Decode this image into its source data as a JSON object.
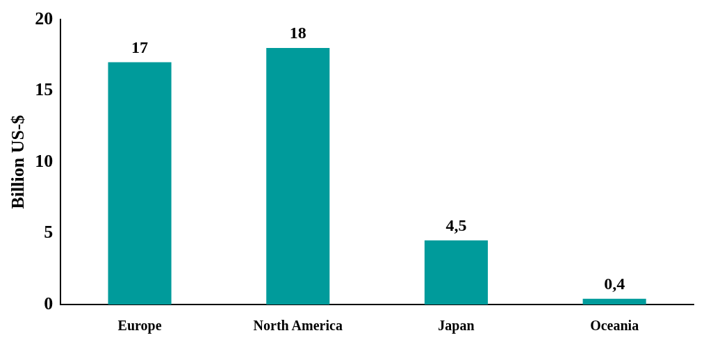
{
  "chart_data": {
    "type": "bar",
    "ylabel": "Billion US-$",
    "categories": [
      "Europe",
      "North America",
      "Japan",
      "Oceania"
    ],
    "values": [
      17,
      18,
      4.5,
      0.4
    ],
    "value_labels": [
      "17",
      "18",
      "4,5",
      "0,4"
    ],
    "color": "#009b9b",
    "ylim": [
      0,
      20
    ],
    "yticks": [
      0,
      5,
      10,
      15,
      20
    ],
    "grid": false,
    "legend": false
  }
}
